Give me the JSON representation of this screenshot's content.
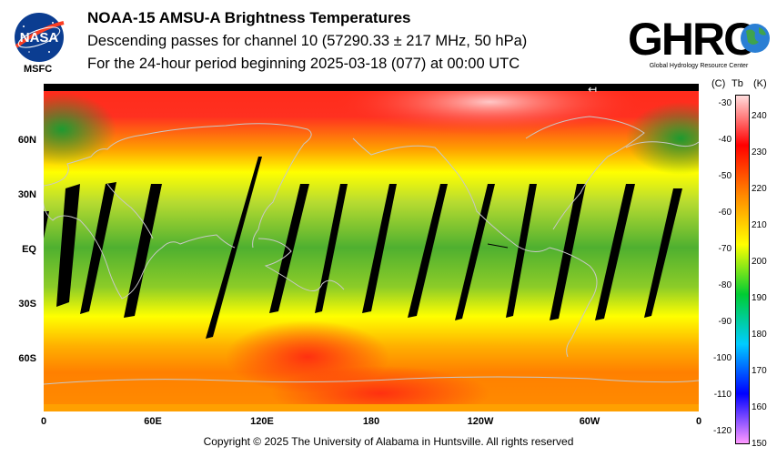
{
  "header": {
    "title": "NOAA-15 AMSU-A Brightness Temperatures",
    "subtitle1": "Descending passes for channel 10 (57290.33 ± 217 MHz, 50 hPa)",
    "subtitle2": "For the 24-hour period beginning 2025-03-18 (077) at 00:00 UTC"
  },
  "logos": {
    "nasa_text": "NASA",
    "msfc": "MSFC",
    "ghrc_text": "GHRC",
    "ghrc_caption": "Global Hydrology Resource Center"
  },
  "map": {
    "lat_labels": [
      "60N",
      "30N",
      "EQ",
      "30S",
      "60S"
    ],
    "lon_labels": [
      "0",
      "60E",
      "120E",
      "180",
      "120W",
      "60W",
      "0"
    ]
  },
  "colorbar": {
    "header_c": "(C)",
    "header_tb": "Tb",
    "header_k": "(K)",
    "celsius": [
      "-30",
      "-40",
      "-50",
      "-60",
      "-70",
      "-80",
      "-90",
      "-100",
      "-110",
      "-120"
    ],
    "kelvin": [
      "240",
      "230",
      "220",
      "210",
      "200",
      "190",
      "180",
      "170",
      "160",
      "150"
    ],
    "colors": [
      "#ff99ff",
      "#0000ff",
      "#00ccff",
      "#00cc33",
      "#ffff00",
      "#ff8800",
      "#ff0000",
      "#ffdddd"
    ]
  },
  "footer": {
    "copyright": "Copyright © 2025 The University of Alabama in Huntsville.  All rights reserved"
  }
}
